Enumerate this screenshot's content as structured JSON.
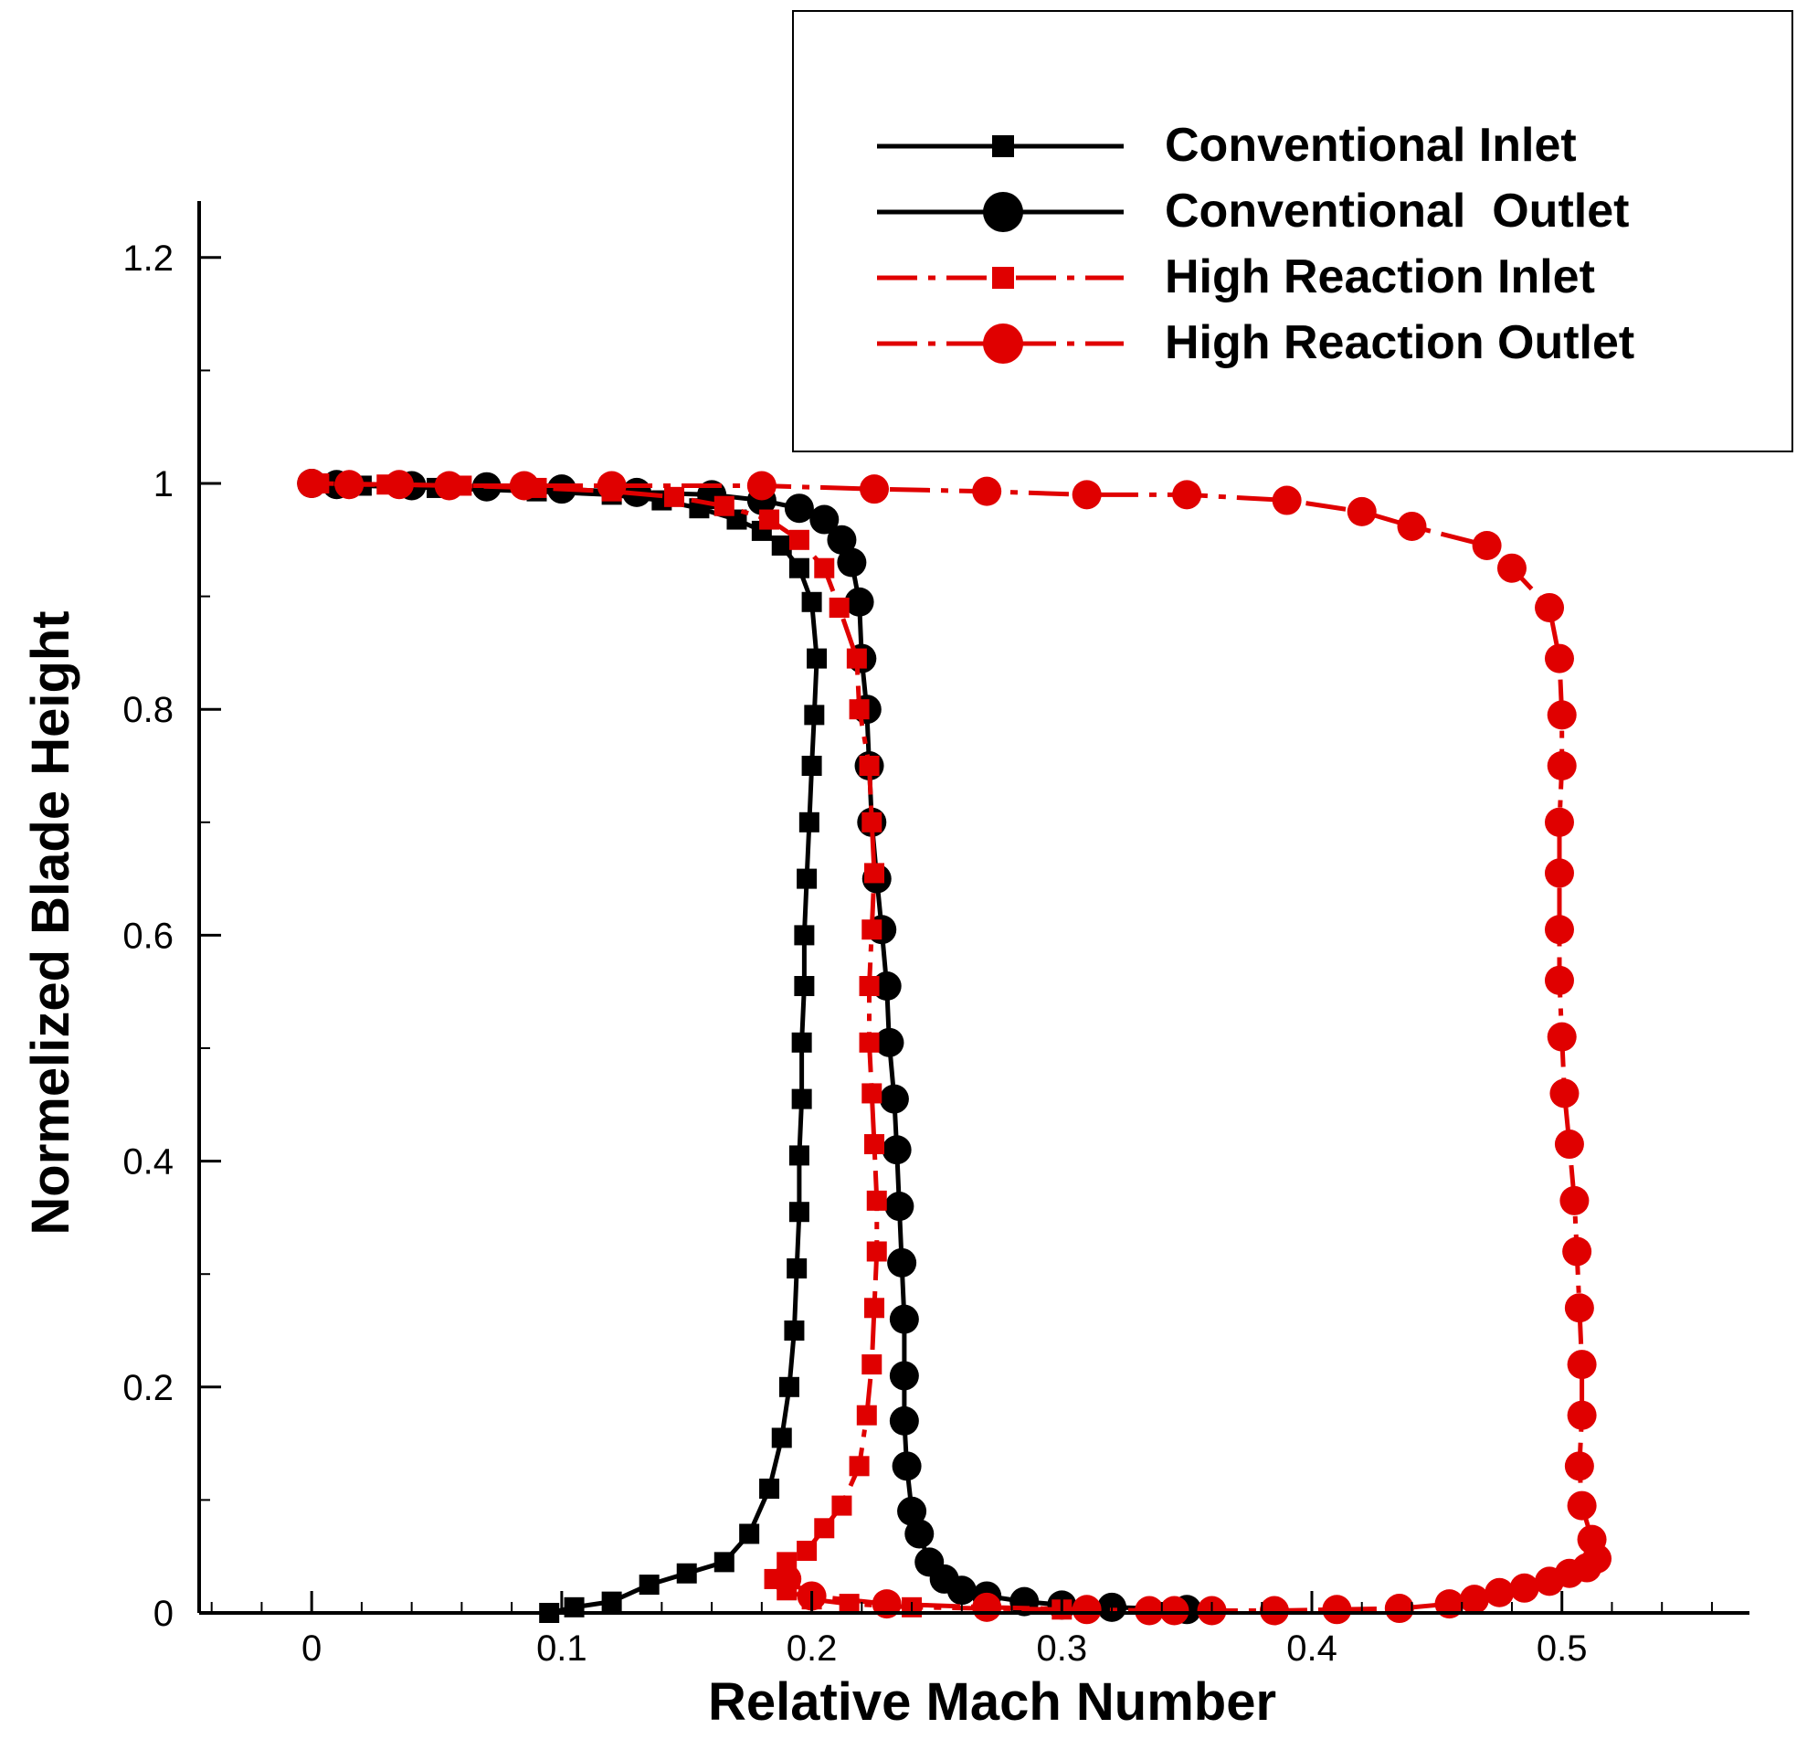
{
  "chart_data": {
    "type": "line",
    "title": "",
    "xlabel": "Relative Mach Number",
    "ylabel": "Normelized Blade Height",
    "xlim": [
      -0.045,
      0.575
    ],
    "ylim": [
      0,
      1.25
    ],
    "x_ticks": [
      0,
      0.1,
      0.2,
      0.3,
      0.4,
      0.5
    ],
    "x_tick_labels": [
      "0",
      "0.1",
      "0.2",
      "0.3",
      "0.4",
      "0.5"
    ],
    "y_ticks": [
      0,
      0.2,
      0.4,
      0.6,
      0.8,
      1.0,
      1.2
    ],
    "y_tick_labels": [
      "0",
      "0.2",
      "0.4",
      "0.6",
      "0.8",
      "1",
      "1.2"
    ],
    "grid": false,
    "legend_position": "top-right",
    "series": [
      {
        "name": "Conventional Inlet",
        "color": "#000000",
        "line": "solid",
        "marker": "square",
        "points": [
          [
            0.095,
            0.0
          ],
          [
            0.105,
            0.005
          ],
          [
            0.12,
            0.01
          ],
          [
            0.135,
            0.025
          ],
          [
            0.15,
            0.035
          ],
          [
            0.165,
            0.045
          ],
          [
            0.175,
            0.07
          ],
          [
            0.183,
            0.11
          ],
          [
            0.188,
            0.155
          ],
          [
            0.191,
            0.2
          ],
          [
            0.193,
            0.25
          ],
          [
            0.194,
            0.305
          ],
          [
            0.195,
            0.355
          ],
          [
            0.195,
            0.405
          ],
          [
            0.196,
            0.455
          ],
          [
            0.196,
            0.505
          ],
          [
            0.197,
            0.555
          ],
          [
            0.197,
            0.6
          ],
          [
            0.198,
            0.65
          ],
          [
            0.199,
            0.7
          ],
          [
            0.2,
            0.75
          ],
          [
            0.201,
            0.795
          ],
          [
            0.202,
            0.845
          ],
          [
            0.2,
            0.895
          ],
          [
            0.195,
            0.925
          ],
          [
            0.188,
            0.945
          ],
          [
            0.18,
            0.958
          ],
          [
            0.17,
            0.968
          ],
          [
            0.155,
            0.978
          ],
          [
            0.14,
            0.985
          ],
          [
            0.12,
            0.99
          ],
          [
            0.09,
            0.993
          ],
          [
            0.05,
            0.996
          ],
          [
            0.02,
            0.998
          ],
          [
            0.003,
            1.0
          ]
        ]
      },
      {
        "name": "Conventional  Outlet",
        "color": "#000000",
        "line": "solid",
        "marker": "circle",
        "points": [
          [
            0.35,
            0.003
          ],
          [
            0.32,
            0.005
          ],
          [
            0.3,
            0.007
          ],
          [
            0.285,
            0.01
          ],
          [
            0.27,
            0.015
          ],
          [
            0.26,
            0.02
          ],
          [
            0.253,
            0.03
          ],
          [
            0.247,
            0.045
          ],
          [
            0.243,
            0.07
          ],
          [
            0.24,
            0.09
          ],
          [
            0.238,
            0.13
          ],
          [
            0.237,
            0.17
          ],
          [
            0.237,
            0.21
          ],
          [
            0.237,
            0.26
          ],
          [
            0.236,
            0.31
          ],
          [
            0.235,
            0.36
          ],
          [
            0.234,
            0.41
          ],
          [
            0.233,
            0.455
          ],
          [
            0.231,
            0.505
          ],
          [
            0.23,
            0.555
          ],
          [
            0.228,
            0.605
          ],
          [
            0.226,
            0.65
          ],
          [
            0.224,
            0.7
          ],
          [
            0.223,
            0.75
          ],
          [
            0.222,
            0.8
          ],
          [
            0.22,
            0.845
          ],
          [
            0.219,
            0.895
          ],
          [
            0.216,
            0.93
          ],
          [
            0.212,
            0.95
          ],
          [
            0.205,
            0.968
          ],
          [
            0.195,
            0.978
          ],
          [
            0.18,
            0.985
          ],
          [
            0.16,
            0.99
          ],
          [
            0.13,
            0.992
          ],
          [
            0.1,
            0.995
          ],
          [
            0.07,
            0.997
          ],
          [
            0.04,
            0.998
          ],
          [
            0.01,
            0.999
          ],
          [
            0.0,
            1.0
          ]
        ]
      },
      {
        "name": "High Reaction Inlet",
        "color": "#e00000",
        "line": "dashdot",
        "marker": "square",
        "points": [
          [
            0.3,
            0.003
          ],
          [
            0.27,
            0.004
          ],
          [
            0.24,
            0.005
          ],
          [
            0.215,
            0.008
          ],
          [
            0.2,
            0.012
          ],
          [
            0.19,
            0.02
          ],
          [
            0.185,
            0.03
          ],
          [
            0.19,
            0.045
          ],
          [
            0.198,
            0.055
          ],
          [
            0.205,
            0.075
          ],
          [
            0.212,
            0.095
          ],
          [
            0.219,
            0.13
          ],
          [
            0.222,
            0.175
          ],
          [
            0.224,
            0.22
          ],
          [
            0.225,
            0.27
          ],
          [
            0.226,
            0.32
          ],
          [
            0.226,
            0.365
          ],
          [
            0.225,
            0.415
          ],
          [
            0.224,
            0.46
          ],
          [
            0.223,
            0.505
          ],
          [
            0.223,
            0.555
          ],
          [
            0.224,
            0.605
          ],
          [
            0.225,
            0.655
          ],
          [
            0.224,
            0.7
          ],
          [
            0.223,
            0.75
          ],
          [
            0.219,
            0.8
          ],
          [
            0.218,
            0.845
          ],
          [
            0.211,
            0.89
          ],
          [
            0.205,
            0.925
          ],
          [
            0.195,
            0.95
          ],
          [
            0.183,
            0.968
          ],
          [
            0.165,
            0.98
          ],
          [
            0.145,
            0.988
          ],
          [
            0.12,
            0.993
          ],
          [
            0.09,
            0.996
          ],
          [
            0.06,
            0.998
          ],
          [
            0.03,
            0.999
          ],
          [
            0.003,
            1.0
          ]
        ]
      },
      {
        "name": "High Reaction Outlet",
        "color": "#e00000",
        "line": "dashdot",
        "marker": "circle",
        "points": [
          [
            0.19,
            0.03
          ],
          [
            0.2,
            0.015
          ],
          [
            0.23,
            0.008
          ],
          [
            0.27,
            0.005
          ],
          [
            0.31,
            0.003
          ],
          [
            0.335,
            0.002
          ],
          [
            0.345,
            0.002
          ],
          [
            0.36,
            0.002
          ],
          [
            0.385,
            0.002
          ],
          [
            0.41,
            0.003
          ],
          [
            0.435,
            0.004
          ],
          [
            0.455,
            0.008
          ],
          [
            0.465,
            0.012
          ],
          [
            0.475,
            0.018
          ],
          [
            0.485,
            0.022
          ],
          [
            0.495,
            0.028
          ],
          [
            0.503,
            0.035
          ],
          [
            0.51,
            0.04
          ],
          [
            0.514,
            0.048
          ],
          [
            0.512,
            0.065
          ],
          [
            0.508,
            0.095
          ],
          [
            0.507,
            0.13
          ],
          [
            0.508,
            0.175
          ],
          [
            0.508,
            0.22
          ],
          [
            0.507,
            0.27
          ],
          [
            0.506,
            0.32
          ],
          [
            0.505,
            0.365
          ],
          [
            0.503,
            0.415
          ],
          [
            0.501,
            0.46
          ],
          [
            0.5,
            0.51
          ],
          [
            0.499,
            0.56
          ],
          [
            0.499,
            0.605
          ],
          [
            0.499,
            0.655
          ],
          [
            0.499,
            0.7
          ],
          [
            0.5,
            0.75
          ],
          [
            0.5,
            0.795
          ],
          [
            0.499,
            0.845
          ],
          [
            0.495,
            0.89
          ],
          [
            0.48,
            0.925
          ],
          [
            0.47,
            0.945
          ],
          [
            0.44,
            0.962
          ],
          [
            0.42,
            0.975
          ],
          [
            0.39,
            0.985
          ],
          [
            0.35,
            0.99
          ],
          [
            0.31,
            0.99
          ],
          [
            0.27,
            0.993
          ],
          [
            0.225,
            0.995
          ],
          [
            0.18,
            0.998
          ],
          [
            0.12,
            0.998
          ],
          [
            0.085,
            0.998
          ],
          [
            0.055,
            0.998
          ],
          [
            0.035,
            0.999
          ],
          [
            0.015,
            0.999
          ],
          [
            0.0,
            1.0
          ]
        ]
      }
    ]
  }
}
